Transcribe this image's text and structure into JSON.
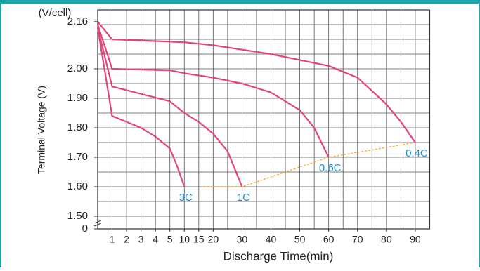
{
  "chart_data": {
    "type": "line",
    "unit_label": "(V/cell)",
    "xlabel": "Discharge Time(min)",
    "ylabel": "Terminal Voltage (V)",
    "xticks": [
      1,
      2,
      3,
      4,
      5,
      10,
      15,
      20,
      30,
      40,
      50,
      60,
      70,
      80,
      90
    ],
    "xlim": [
      0,
      90
    ],
    "ylim": [
      1.5,
      2.2
    ],
    "yticks": [
      0,
      {
        "value": 1.5,
        "label": "1.50"
      },
      {
        "value": 1.6,
        "label": "1.60"
      },
      {
        "value": 1.7,
        "label": "1.70"
      },
      {
        "value": 1.8,
        "label": "1.80"
      },
      {
        "value": 1.9,
        "label": "1.90"
      },
      {
        "value": 2.0,
        "label": "2.00"
      },
      2.16
    ],
    "grid": true,
    "series": [
      {
        "name": "3C",
        "color": "#e2457c",
        "x": [
          0,
          1,
          2,
          3,
          4,
          5,
          7.5,
          10
        ],
        "values": [
          2.14,
          1.84,
          1.82,
          1.8,
          1.77,
          1.73,
          1.67,
          1.6
        ]
      },
      {
        "name": "1C",
        "color": "#e2457c",
        "x": [
          0,
          1,
          5,
          10,
          15,
          20,
          25,
          30
        ],
        "values": [
          2.14,
          1.94,
          1.89,
          1.85,
          1.82,
          1.78,
          1.72,
          1.6
        ]
      },
      {
        "name": "0.6C",
        "color": "#e2457c",
        "x": [
          0,
          1,
          5,
          10,
          20,
          30,
          40,
          50,
          55,
          60
        ],
        "values": [
          2.15,
          2.0,
          1.995,
          1.985,
          1.97,
          1.95,
          1.92,
          1.86,
          1.8,
          1.7
        ]
      },
      {
        "name": "0.4C",
        "color": "#e2457c",
        "x": [
          0,
          1,
          10,
          20,
          30,
          40,
          50,
          60,
          70,
          80,
          85,
          90
        ],
        "values": [
          2.16,
          2.1,
          2.09,
          2.08,
          2.065,
          2.05,
          2.03,
          2.01,
          1.97,
          1.88,
          1.82,
          1.75
        ]
      }
    ],
    "cutoff": {
      "color": "#f5a623",
      "x": [
        16,
        30,
        60,
        90
      ],
      "values": [
        1.6,
        1.6,
        1.7,
        1.75
      ]
    },
    "label_color": "#1a8fd0"
  }
}
